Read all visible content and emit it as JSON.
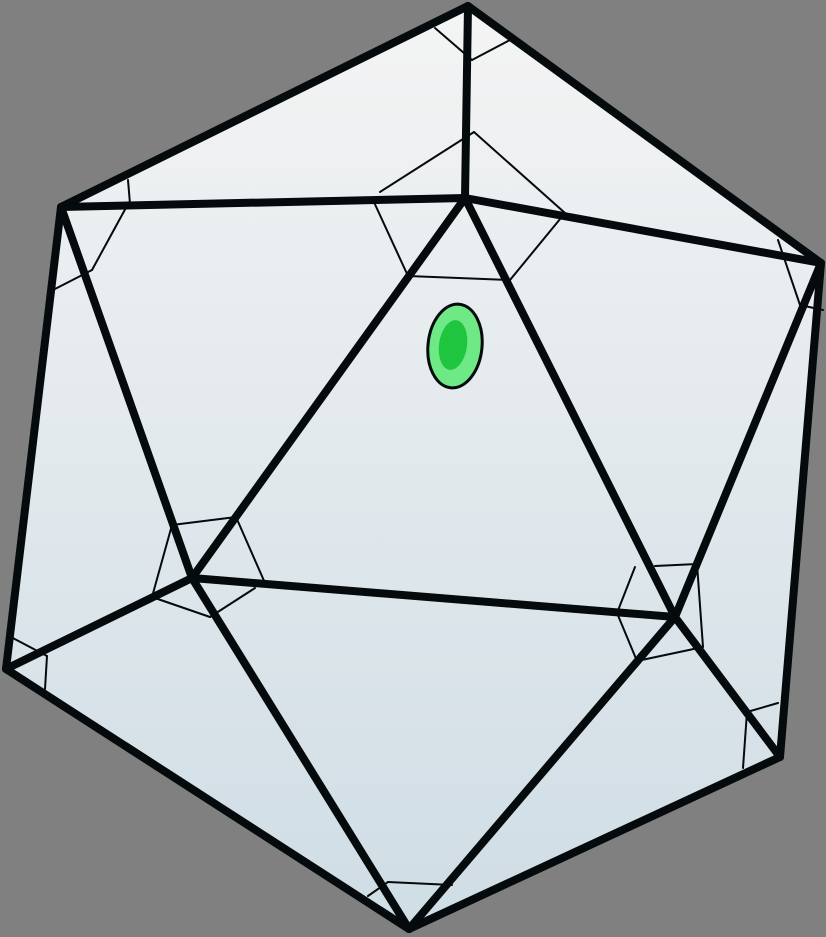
{
  "figure": {
    "subject": "icosahedron",
    "colors": {
      "background": "#808080",
      "fill_top": "#f4f4f4",
      "fill_bottom": "#cfdde5",
      "edge": "#050a0c",
      "marker_outer": "#6fe886",
      "marker_inner": "#1fc53f"
    },
    "marker": {
      "icon": "green-oval-marker-icon",
      "on_face": "front-upper-face"
    }
  }
}
